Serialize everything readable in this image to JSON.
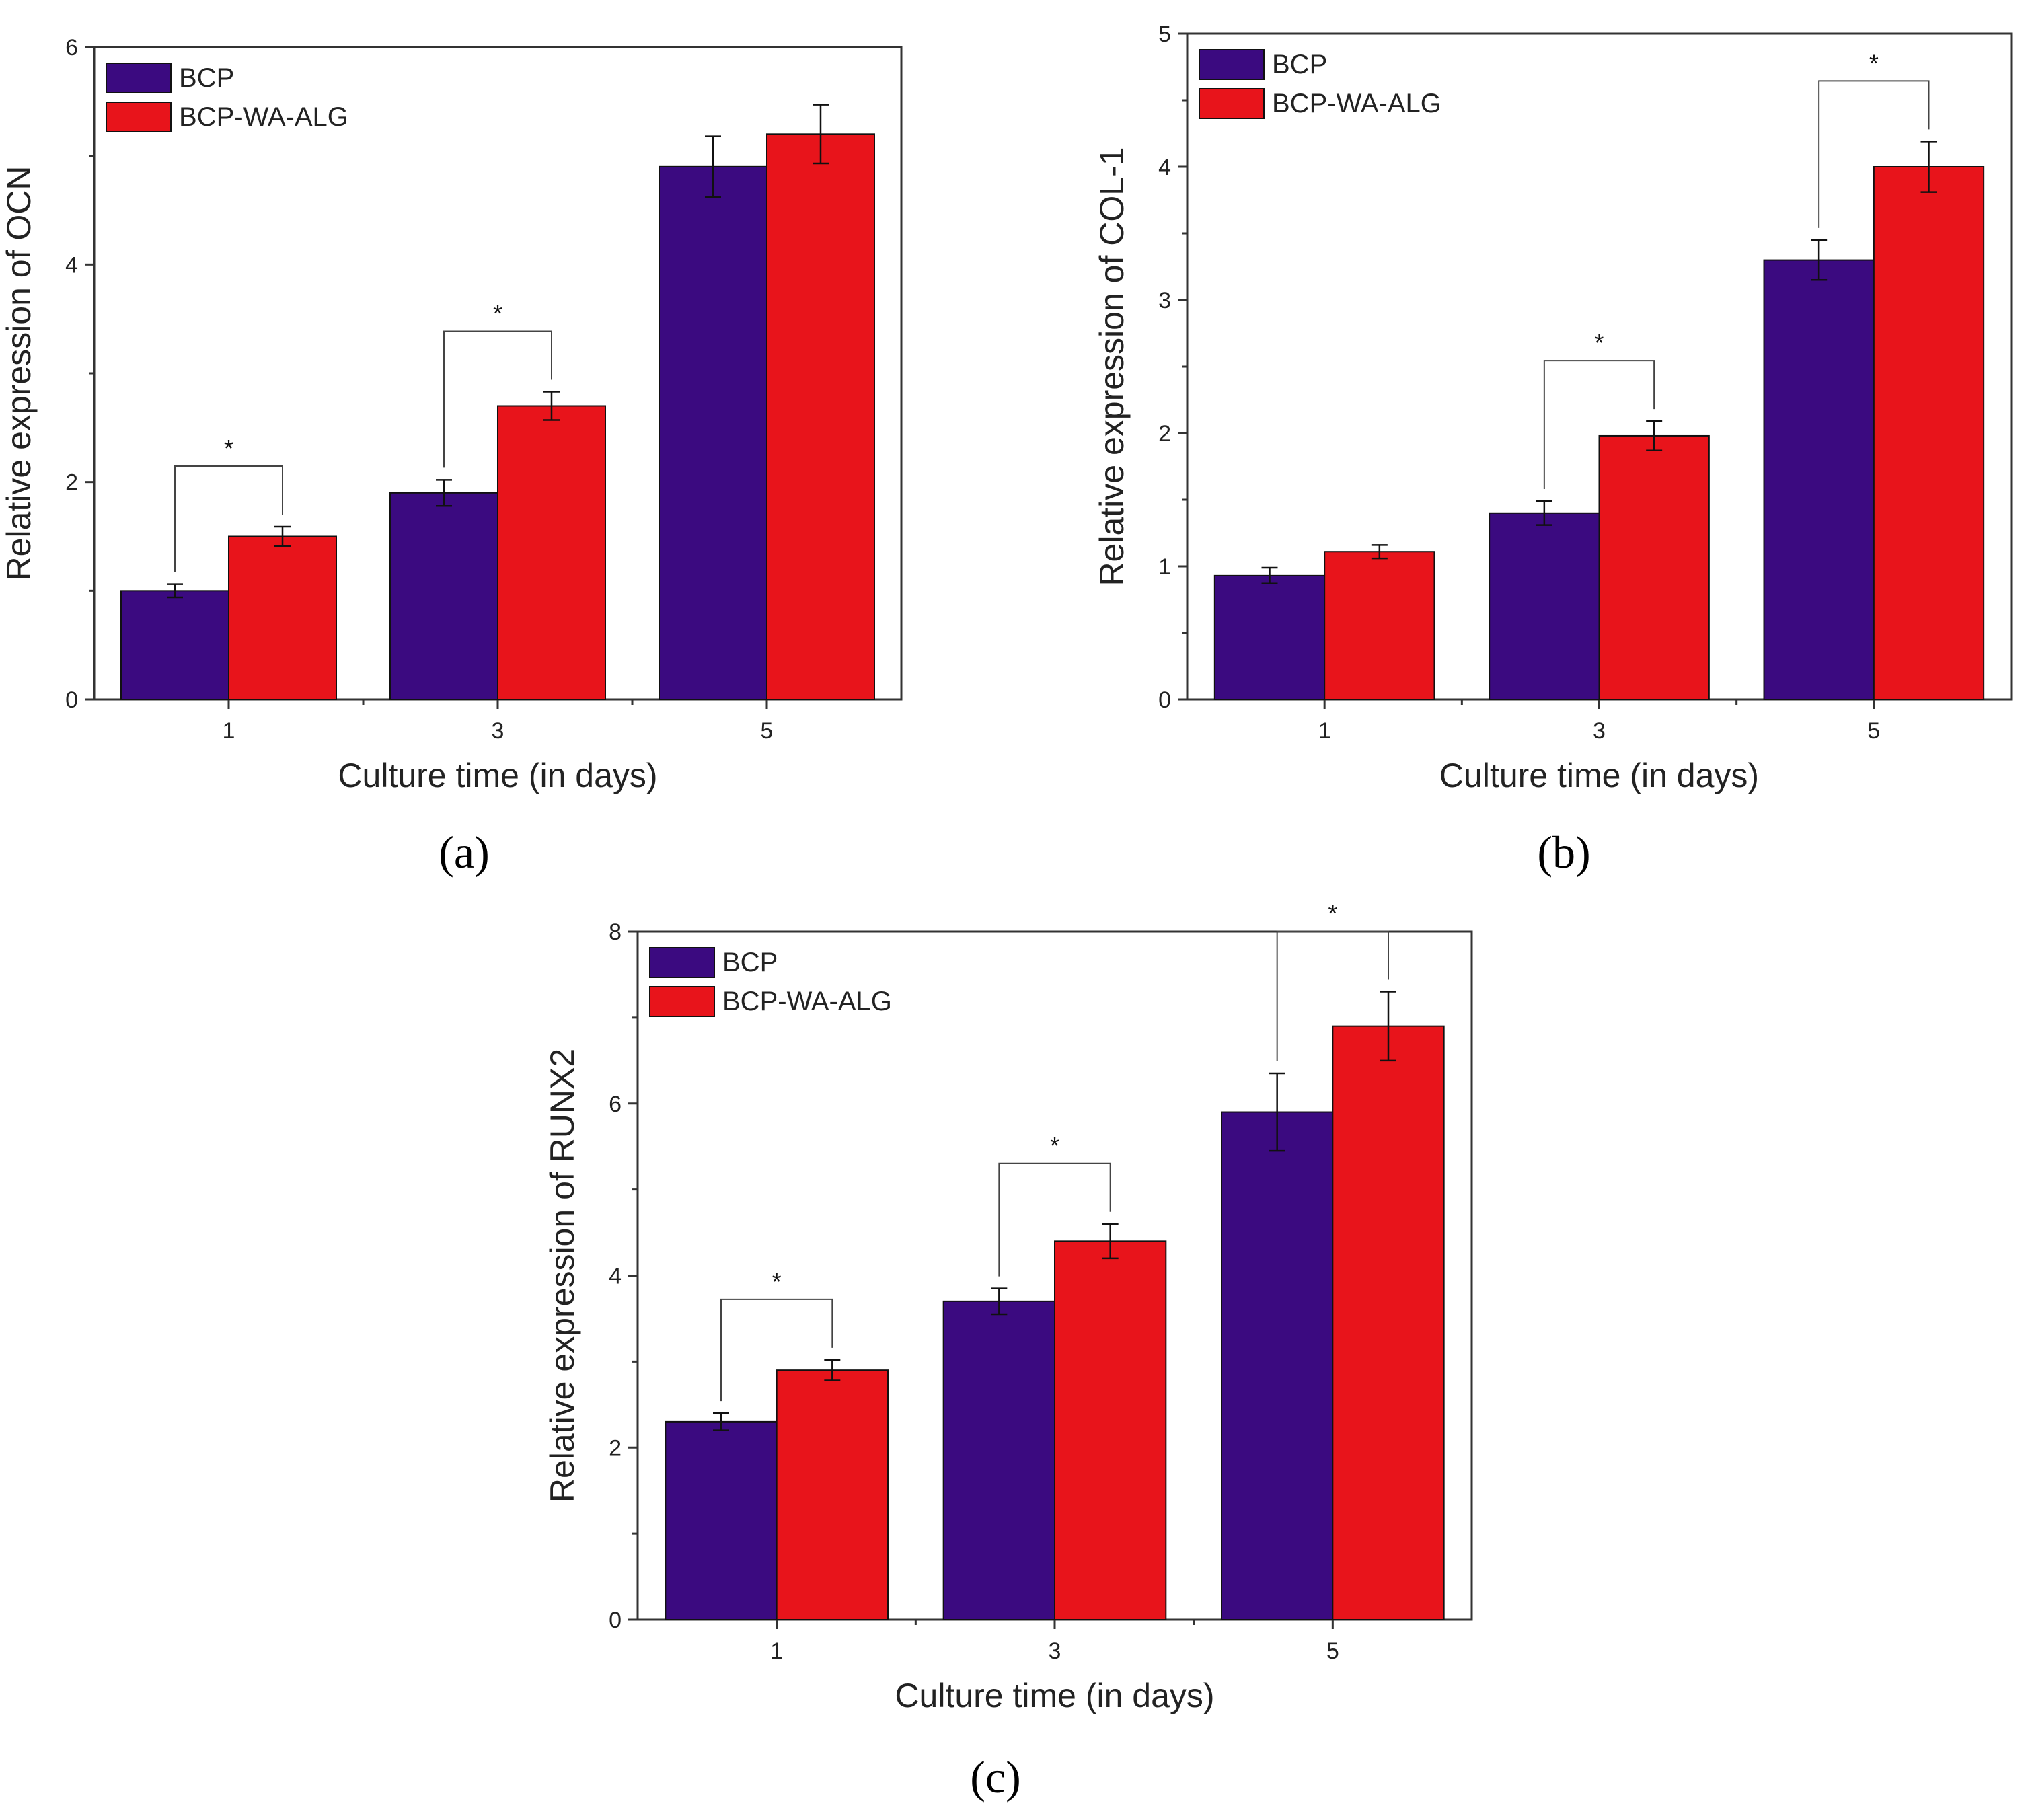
{
  "colors": {
    "series_a": "#3b0a80",
    "series_b": "#e8141b",
    "axis": "#333333",
    "text": "#222222"
  },
  "chart_data": [
    {
      "type": "bar",
      "panel_label": "(a)",
      "categories": [
        "1",
        "3",
        "5"
      ],
      "series": [
        {
          "name": "BCP",
          "values": [
            1.0,
            1.9,
            4.9
          ],
          "errors": [
            0.06,
            0.12,
            0.28
          ]
        },
        {
          "name": "BCP-WA-ALG",
          "values": [
            1.5,
            2.7,
            5.2
          ],
          "errors": [
            0.09,
            0.13,
            0.27
          ]
        }
      ],
      "xlabel": "Culture time (in days)",
      "ylabel": "Relative expression of OCN",
      "ylim": [
        0,
        6
      ],
      "yticks": [
        "0",
        "2",
        "4",
        "6"
      ],
      "significance": [
        {
          "category": "1",
          "label": "*"
        },
        {
          "category": "3",
          "label": "*"
        }
      ],
      "legend": "top-left",
      "grid": false
    },
    {
      "type": "bar",
      "panel_label": "(b)",
      "categories": [
        "1",
        "3",
        "5"
      ],
      "series": [
        {
          "name": "BCP",
          "values": [
            0.93,
            1.4,
            3.3
          ],
          "errors": [
            0.06,
            0.09,
            0.15
          ]
        },
        {
          "name": "BCP-WA-ALG",
          "values": [
            1.11,
            1.98,
            4.0
          ],
          "errors": [
            0.05,
            0.11,
            0.19
          ]
        }
      ],
      "xlabel": "Culture time (in days)",
      "ylabel": "Relative expression of COL-1",
      "ylim": [
        0,
        5
      ],
      "yticks": [
        "0",
        "1",
        "2",
        "3",
        "4",
        "5"
      ],
      "significance": [
        {
          "category": "3",
          "label": "*"
        },
        {
          "category": "5",
          "label": "*"
        }
      ],
      "legend": "top-left",
      "grid": false
    },
    {
      "type": "bar",
      "panel_label": "(c)",
      "categories": [
        "1",
        "3",
        "5"
      ],
      "series": [
        {
          "name": "BCP",
          "values": [
            2.3,
            3.7,
            5.9
          ],
          "errors": [
            0.1,
            0.15,
            0.45
          ]
        },
        {
          "name": "BCP-WA-ALG",
          "values": [
            2.9,
            4.4,
            6.9
          ],
          "errors": [
            0.12,
            0.2,
            0.4
          ]
        }
      ],
      "xlabel": "Culture time (in days)",
      "ylabel": "Relative expression of RUNX2",
      "ylim": [
        0,
        8
      ],
      "yticks": [
        "0",
        "2",
        "4",
        "6",
        "8"
      ],
      "significance": [
        {
          "category": "1",
          "label": "*"
        },
        {
          "category": "3",
          "label": "*"
        },
        {
          "category": "5",
          "label": "*"
        }
      ],
      "legend": "top-left",
      "grid": false
    }
  ]
}
